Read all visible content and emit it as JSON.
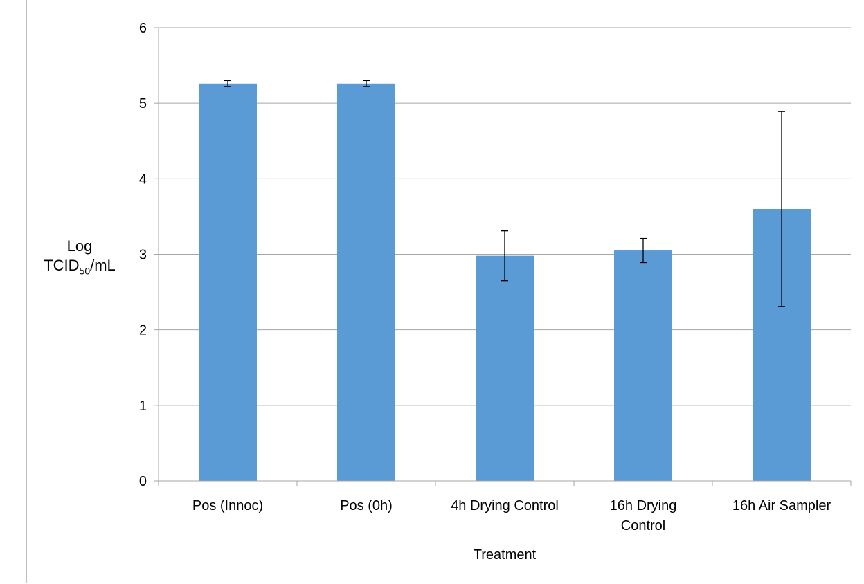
{
  "chart_data": {
    "type": "bar",
    "categories": [
      "Pos (Innoc)",
      "Pos (0h)",
      "4h Drying Control",
      "16h Drying Control",
      "16h Air Sampler"
    ],
    "category_lines": [
      [
        "Pos (Innoc)"
      ],
      [
        "Pos (0h)"
      ],
      [
        "4h Drying Control"
      ],
      [
        "16h Drying",
        "Control"
      ],
      [
        "16h Air Sampler"
      ]
    ],
    "values": [
      5.26,
      5.26,
      2.98,
      3.05,
      3.6
    ],
    "error_bars": [
      0.04,
      0.04,
      0.33,
      0.16,
      1.29
    ],
    "xlabel": "Treatment",
    "ylabel": {
      "main": "Log",
      "prefix": "TCID",
      "subscript": "50",
      "suffix": "/mL"
    },
    "ylim": [
      0,
      6
    ],
    "yticks": [
      0,
      1,
      2,
      3,
      4,
      5,
      6
    ],
    "grid": true,
    "bar_color": "#5b9bd5",
    "grid_color": "#a6a6a6",
    "axis_color": "#a6a6a6",
    "error_color": "#000000"
  }
}
